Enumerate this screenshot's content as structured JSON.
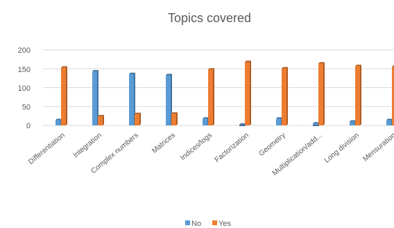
{
  "chart_data": {
    "type": "bar",
    "title": "Topics covered",
    "xlabel": "",
    "ylabel": "",
    "ylim": [
      0,
      200
    ],
    "yticks": [
      "0",
      "50",
      "100",
      "150",
      "200"
    ],
    "grid": true,
    "legend_position": "bottom",
    "categories": [
      "Differentiation",
      "Integration",
      "Complex numbers",
      "Matrices",
      "Indices/logs",
      "Factorization",
      "Geometry",
      "Multiplication/add...",
      "Long division",
      "Mensuration",
      ""
    ],
    "series": [
      {
        "name": "No",
        "color": "#5b9bd5",
        "values": [
          14,
          143,
          136,
          133,
          18,
          2,
          18,
          5,
          10,
          14,
          0
        ]
      },
      {
        "name": "Yes",
        "color": "#ed7d31",
        "values": [
          153,
          24,
          30,
          31,
          148,
          168,
          151,
          164,
          157,
          155,
          0
        ]
      }
    ]
  }
}
